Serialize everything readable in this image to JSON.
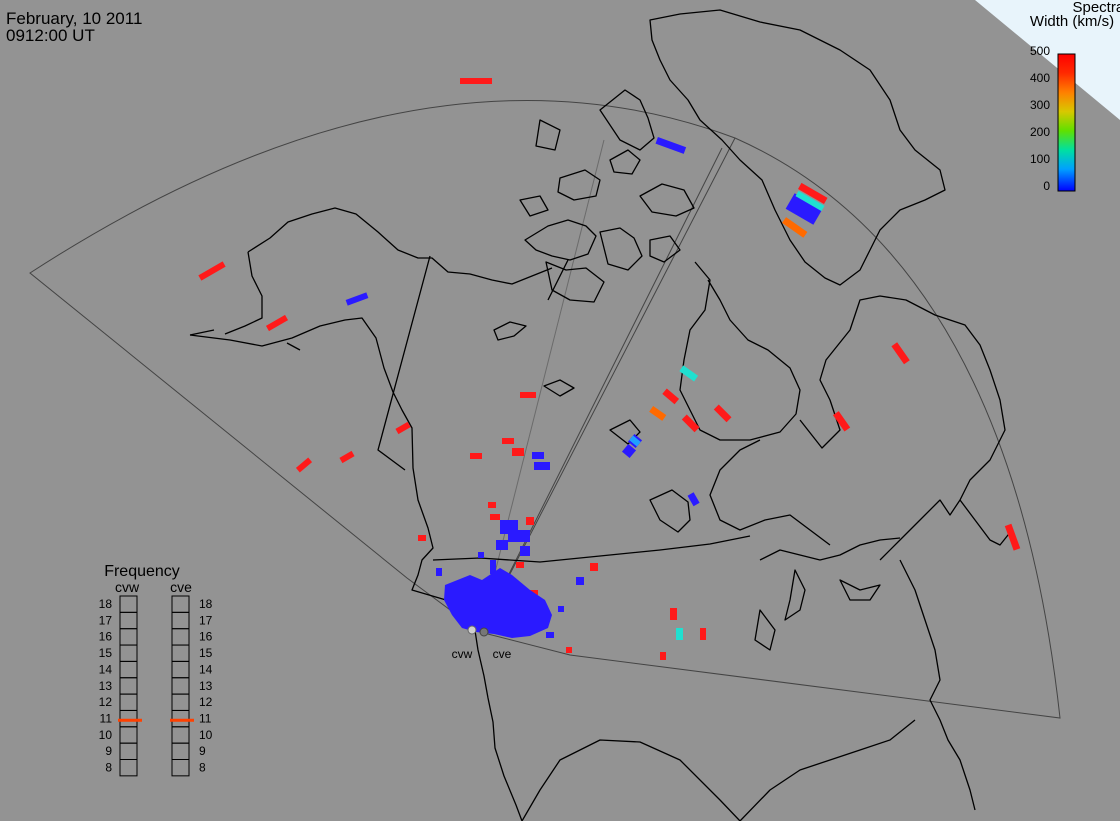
{
  "header": {
    "date": "February, 10 2011",
    "time": "0912:00 UT"
  },
  "colorbar": {
    "title_line1": "Spectral",
    "title_line2": "Width (km/s)",
    "ticks": [
      "500",
      "400",
      "300",
      "200",
      "100",
      "0"
    ],
    "gradient": [
      "#ff0000",
      "#ff7f00",
      "#ffcf00",
      "#9fdf00",
      "#20e020",
      "#00e0c0",
      "#00a0ff",
      "#0000ff"
    ]
  },
  "frequency": {
    "title": "Frequency",
    "left_label": "cvw",
    "right_label": "cve",
    "ticks": [
      "18",
      "17",
      "16",
      "15",
      "14",
      "13",
      "12",
      "11",
      "10",
      "9",
      "8"
    ],
    "cvw_value": 10.9,
    "cve_value": 10.9,
    "marker_color": "#ff4000"
  },
  "radars": [
    {
      "id": "cvw",
      "label": "cvw"
    },
    {
      "id": "cve",
      "label": "cve"
    }
  ],
  "colors": {
    "background": "#939393",
    "red": "#ff1a1a",
    "blue": "#2a1aff",
    "cyan": "#20e0d0",
    "orange": "#ff6a00"
  }
}
